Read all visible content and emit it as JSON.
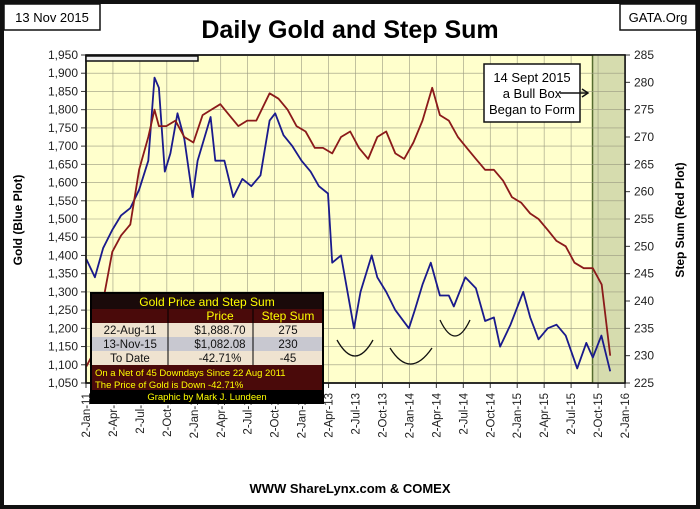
{
  "date_label": "13 Nov 2015",
  "source_label": "GATA.Org",
  "footer": "WWW ShareLynx.com & COMEX",
  "annotation": {
    "line1": "14 Sept 2015",
    "line2": "a Bull Box",
    "line3": "Began to Form"
  },
  "colors": {
    "gold": "#1a1a8c",
    "step_sum": "#8b1a1a",
    "plot_bg": "#ffffcc",
    "bull_box": "#d6dcae",
    "table_bg": "#4a0a0a",
    "table_text": "#ffff00"
  },
  "table": {
    "title": "Gold Price and Step Sum",
    "headers": [
      "",
      "Price",
      "Step Sum"
    ],
    "rows": [
      [
        "22-Aug-11",
        "$1,888.70",
        "275"
      ],
      [
        "13-Nov-15",
        "$1,082.08",
        "230"
      ],
      [
        "To Date",
        "-42.71%",
        "-45"
      ]
    ],
    "note1": "On a Net of 45 Downdays Since 22 Aug 2011",
    "note2": "The Price of Gold is Down -42.71%",
    "credit": "Graphic by Mark J. Lundeen"
  },
  "chart_data": {
    "type": "line",
    "title": "Daily Gold and Step Sum",
    "ylabel": "Gold   (Blue Plot)",
    "y2label": "Step Sum   (Red Plot)",
    "ylim": [
      1050,
      1950
    ],
    "y2lim": [
      225,
      285
    ],
    "xlim": [
      "2011-01-02",
      "2016-01-02"
    ],
    "grid": true,
    "yticks": [
      "1,050",
      "1,100",
      "1,150",
      "1,200",
      "1,250",
      "1,300",
      "1,350",
      "1,400",
      "1,450",
      "1,500",
      "1,550",
      "1,600",
      "1,650",
      "1,700",
      "1,750",
      "1,800",
      "1,850",
      "1,900",
      "1,950"
    ],
    "y2ticks": [
      "225",
      "230",
      "235",
      "240",
      "245",
      "250",
      "255",
      "260",
      "265",
      "270",
      "275",
      "280",
      "285"
    ],
    "xticks": [
      "2-Jan-11",
      "2-Apr-11",
      "2-Jul-11",
      "2-Oct-11",
      "2-Jan-12",
      "2-Apr-12",
      "2-Jul-12",
      "2-Oct-12",
      "2-Jan-13",
      "2-Apr-13",
      "2-Jul-13",
      "2-Oct-13",
      "2-Jan-14",
      "2-Apr-14",
      "2-Jul-14",
      "2-Oct-14",
      "2-Jan-15",
      "2-Apr-15",
      "2-Jul-15",
      "2-Oct-15",
      "2-Jan-16"
    ],
    "bull_box_start": "2015-09-14",
    "series": [
      {
        "axis": "left",
        "x": [
          "2011-01-03",
          "2011-02-01",
          "2011-03-01",
          "2011-04-01",
          "2011-05-01",
          "2011-06-01",
          "2011-07-01",
          "2011-08-01",
          "2011-08-22",
          "2011-09-06",
          "2011-09-26",
          "2011-10-15",
          "2011-11-08",
          "2011-12-01",
          "2011-12-29",
          "2012-01-15",
          "2012-02-28",
          "2012-03-15",
          "2012-04-15",
          "2012-05-15",
          "2012-06-15",
          "2012-07-15",
          "2012-08-15",
          "2012-09-15",
          "2012-10-04",
          "2012-11-01",
          "2012-12-01",
          "2013-01-01",
          "2013-02-01",
          "2013-03-01",
          "2013-04-01",
          "2013-04-15",
          "2013-05-15",
          "2013-06-28",
          "2013-07-20",
          "2013-08-27",
          "2013-09-15",
          "2013-10-15",
          "2013-11-15",
          "2013-12-31",
          "2014-01-20",
          "2014-02-15",
          "2014-03-15",
          "2014-04-15",
          "2014-05-15",
          "2014-06-01",
          "2014-07-10",
          "2014-08-15",
          "2014-09-15",
          "2014-10-15",
          "2014-11-05",
          "2014-12-10",
          "2015-01-22",
          "2015-02-15",
          "2015-03-15",
          "2015-04-15",
          "2015-05-15",
          "2015-06-15",
          "2015-07-24",
          "2015-08-24",
          "2015-09-15",
          "2015-10-14",
          "2015-11-13"
        ],
        "values": [
          1390,
          1340,
          1420,
          1470,
          1510,
          1530,
          1580,
          1660,
          1888,
          1860,
          1630,
          1680,
          1790,
          1720,
          1560,
          1660,
          1780,
          1660,
          1660,
          1560,
          1610,
          1590,
          1620,
          1770,
          1790,
          1730,
          1700,
          1660,
          1630,
          1590,
          1570,
          1380,
          1400,
          1200,
          1300,
          1400,
          1340,
          1300,
          1250,
          1200,
          1250,
          1320,
          1380,
          1290,
          1290,
          1260,
          1340,
          1310,
          1220,
          1230,
          1150,
          1210,
          1300,
          1230,
          1170,
          1200,
          1210,
          1180,
          1090,
          1160,
          1120,
          1180,
          1082
        ]
      },
      {
        "axis": "right",
        "x": [
          "2011-01-03",
          "2011-02-01",
          "2011-03-01",
          "2011-04-01",
          "2011-05-01",
          "2011-06-01",
          "2011-07-01",
          "2011-08-01",
          "2011-08-22",
          "2011-09-06",
          "2011-10-01",
          "2011-11-01",
          "2011-12-01",
          "2012-01-01",
          "2012-02-01",
          "2012-03-01",
          "2012-04-01",
          "2012-05-01",
          "2012-06-01",
          "2012-07-01",
          "2012-08-01",
          "2012-09-15",
          "2012-10-15",
          "2012-11-15",
          "2012-12-15",
          "2013-01-15",
          "2013-02-15",
          "2013-03-15",
          "2013-04-15",
          "2013-05-15",
          "2013-06-15",
          "2013-07-15",
          "2013-08-15",
          "2013-09-15",
          "2013-10-15",
          "2013-11-15",
          "2013-12-15",
          "2014-01-15",
          "2014-02-15",
          "2014-03-20",
          "2014-04-15",
          "2014-05-15",
          "2014-06-15",
          "2014-07-15",
          "2014-08-15",
          "2014-09-15",
          "2014-10-15",
          "2014-11-15",
          "2014-12-15",
          "2015-01-15",
          "2015-02-15",
          "2015-03-15",
          "2015-04-15",
          "2015-05-15",
          "2015-06-15",
          "2015-07-15",
          "2015-08-15",
          "2015-09-15",
          "2015-10-15",
          "2015-11-13"
        ],
        "values": [
          228,
          231,
          240,
          249,
          252,
          254,
          264,
          270,
          275,
          272,
          272,
          273,
          270,
          269,
          274,
          275,
          276,
          274,
          272,
          273,
          273,
          278,
          277,
          275,
          272,
          271,
          268,
          268,
          267,
          270,
          271,
          268,
          266,
          270,
          271,
          267,
          266,
          269,
          273,
          279,
          274,
          273,
          270,
          268,
          266,
          264,
          264,
          262,
          259,
          258,
          256,
          255,
          253,
          251,
          250,
          247,
          246,
          246,
          243,
          230
        ]
      }
    ]
  }
}
